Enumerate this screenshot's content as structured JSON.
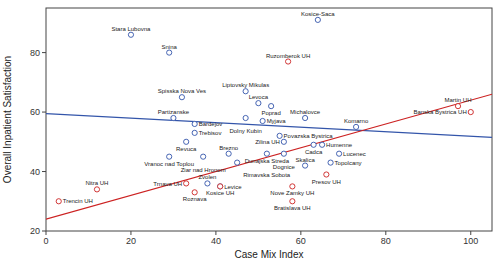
{
  "chart_data": {
    "type": "scatter",
    "xlabel": "Case Mix Index",
    "ylabel": "Overall Inpatient Satisfaction",
    "xlim": [
      0,
      105
    ],
    "ylim": [
      20,
      95
    ],
    "xticks": [
      0,
      20,
      40,
      60,
      80,
      100
    ],
    "yticks": [
      20,
      40,
      60,
      80
    ],
    "grid": false,
    "series": [
      {
        "type": "line",
        "line_style": "solid",
        "color": "#3355aa",
        "x": [
          0,
          105
        ],
        "values": [
          59.5,
          51.5
        ]
      },
      {
        "type": "line",
        "line_style": "solid",
        "color": "#cc2222",
        "x": [
          0,
          105
        ],
        "values": [
          24,
          66
        ]
      },
      {
        "type": "scatter",
        "marker": "circle",
        "color": "#3355aa",
        "x": [
          20,
          29,
          32,
          30,
          35,
          35,
          33,
          29,
          37,
          47,
          50,
          53,
          47,
          51,
          61,
          55,
          56,
          64,
          63,
          65,
          69,
          67,
          43,
          52,
          56,
          61,
          45,
          73,
          38,
          41
        ],
        "values": [
          86,
          80,
          65,
          58,
          56,
          53,
          50,
          45,
          45,
          67,
          63,
          62,
          58,
          57,
          58,
          52,
          50,
          91,
          49,
          49,
          46,
          43,
          46,
          46,
          46,
          42,
          43,
          55,
          36,
          35
        ],
        "labels": [
          "Stara Lubovna",
          "Snina",
          "Spisska Nova Ves",
          "Partizanske",
          "Bardejov",
          "Trebisov",
          "Revuca",
          "Vranoc nad Toplou",
          "Ziar nad Hronom",
          "Liptovsky Mikulas",
          "Levoca",
          "Poprad",
          "Dolny Kubin",
          "Myjava",
          "Michalovce",
          "Povazska Bystrica",
          "Zilina UH",
          "Kosice-Saca",
          "Cadca",
          "Humenne",
          "Lucenec",
          "Topolcany",
          "Brezno",
          "Dunajska Streda",
          "Dognice",
          "Skalica",
          "Rimavska Sobota",
          "Komarno",
          "Zvolen",
          "Kosice UH"
        ]
      },
      {
        "type": "scatter",
        "marker": "circle",
        "color": "#cc2222",
        "x": [
          3,
          12,
          33,
          35,
          41,
          57,
          58,
          58,
          66,
          97,
          100
        ],
        "values": [
          30,
          34,
          36,
          33,
          35,
          77,
          35,
          30,
          39,
          62,
          60
        ],
        "labels": [
          "Trencin UH",
          "Nitra UH",
          "Trnava UH",
          "Roznava",
          "Levice",
          "Ruzomberok UH",
          "Nove Zamky UH",
          "Bratislava UH",
          "Presov UH",
          "Martin UH",
          "Banska Bystrica UH"
        ]
      }
    ]
  }
}
